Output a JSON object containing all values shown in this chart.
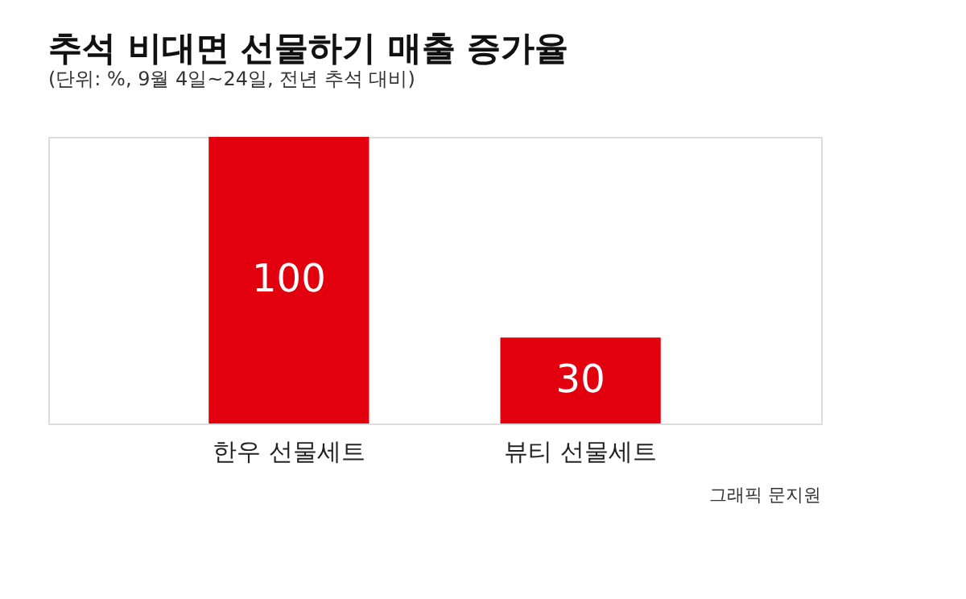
{
  "chart_data": {
    "type": "bar",
    "title": "추석 비대면 선물하기 매출 증가율",
    "subtitle": "(단위: %, 9월 4일~24일, 전년 추석 대비)",
    "categories": [
      "한우 선물세트",
      "뷰티 선물세트"
    ],
    "values": [
      100,
      30
    ],
    "color": "#e2000f",
    "data_labels": true,
    "annotations": [
      "그래픽 문지원"
    ]
  }
}
